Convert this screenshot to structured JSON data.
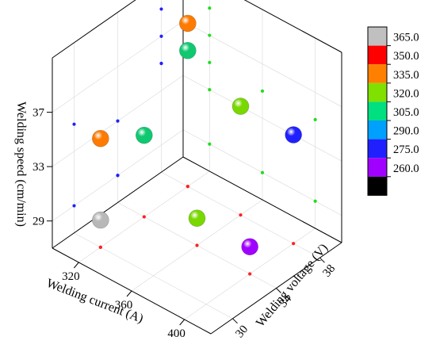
{
  "chart_data": {
    "type": "scatter3d",
    "axes": {
      "x": {
        "label": "Welding current (A)",
        "range": [
          300,
          420
        ],
        "ticks": [
          320,
          360,
          400
        ]
      },
      "y": {
        "label": "Welding voltage (V)",
        "range": [
          28,
          40
        ],
        "ticks": [
          30,
          34,
          38
        ]
      },
      "z": {
        "label": "Welding speed (cm/min)",
        "range": [
          27,
          41
        ],
        "ticks": [
          29,
          33,
          37
        ]
      }
    },
    "colorbar": {
      "ticks": [
        "365.0",
        "350.0",
        "335.0",
        "320.0",
        "305.0",
        "290.0",
        "275.0",
        "260.0"
      ],
      "bands": [
        "#c0c0c0",
        "#ff0000",
        "#ff8000",
        "#80e000",
        "#00e080",
        "#00a0ff",
        "#2020ff",
        "#a000ff",
        "#000000"
      ]
    },
    "points": [
      {
        "current": 320,
        "voltage": 30,
        "speed": 29,
        "value": 362,
        "color": "#b8b8b8"
      },
      {
        "current": 320,
        "voltage": 34,
        "speed": 33,
        "value": 300,
        "color": "#10c870"
      },
      {
        "current": 320,
        "voltage": 30,
        "speed": 35,
        "value": 338,
        "color": "#ff7a00"
      },
      {
        "current": 320,
        "voltage": 38,
        "speed": 39,
        "value": 340,
        "color": "#ff7a00"
      },
      {
        "current": 320,
        "voltage": 38,
        "speed": 37,
        "value": 302,
        "color": "#10c870"
      },
      {
        "current": 360,
        "voltage": 38,
        "speed": 35,
        "value": 318,
        "color": "#78d800"
      },
      {
        "current": 360,
        "voltage": 34,
        "speed": 29,
        "value": 318,
        "color": "#78d800"
      },
      {
        "current": 400,
        "voltage": 34,
        "speed": 29,
        "value": 265,
        "color": "#a000ff"
      },
      {
        "current": 400,
        "voltage": 38,
        "speed": 35,
        "value": 280,
        "color": "#2020ff"
      }
    ]
  }
}
